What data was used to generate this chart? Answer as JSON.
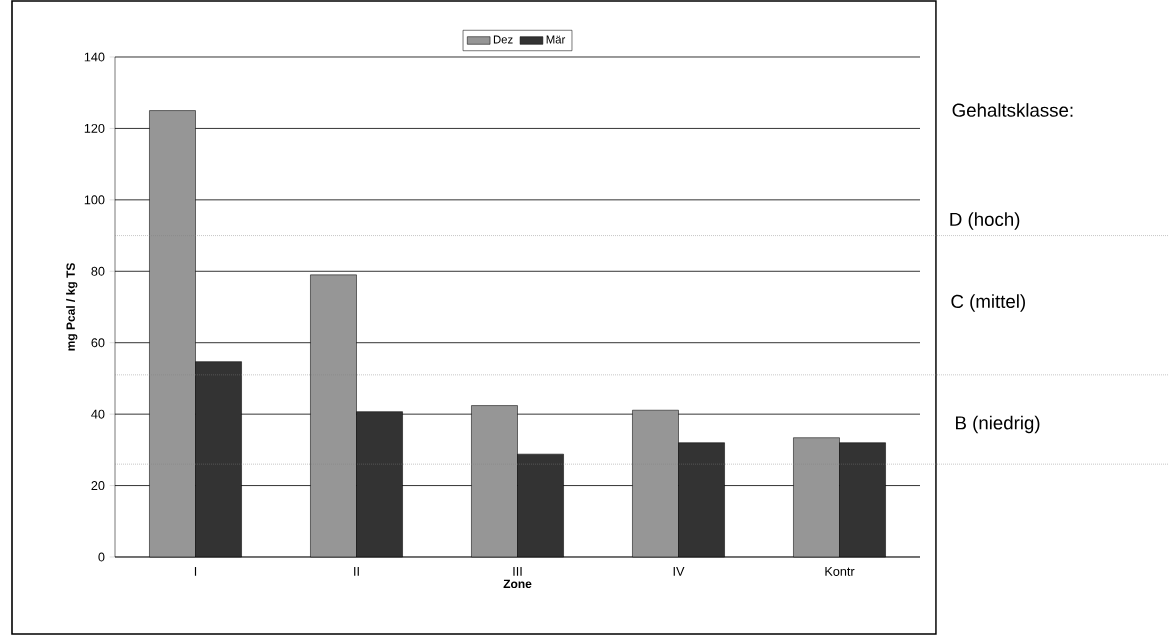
{
  "chart_data": {
    "type": "bar",
    "xlabel": "Zone",
    "ylabel": "mg Pcal / kg TS",
    "categories": [
      "I",
      "II",
      "III",
      "IV",
      "Kontr"
    ],
    "series": [
      {
        "name": "Dez",
        "color": "#969696",
        "values": [
          125,
          79,
          42.4,
          41.1,
          33.4
        ]
      },
      {
        "name": "Mär",
        "color": "#333333",
        "values": [
          54.7,
          40.7,
          28.8,
          32.0,
          32.0
        ]
      }
    ],
    "ylim": [
      0,
      140
    ],
    "yticks": [
      0,
      20,
      40,
      60,
      80,
      100,
      120,
      140
    ],
    "grid": "y",
    "legend": "top",
    "ref_lines": [
      {
        "axis": "y",
        "value": 90,
        "color": "#808080",
        "line_style": "dotted"
      },
      {
        "axis": "y",
        "value": 51,
        "color": "#808080",
        "line_style": "dotted"
      },
      {
        "axis": "y",
        "value": 26,
        "color": "#808080",
        "line_style": "dotted"
      }
    ],
    "annotations": [
      "Gehaltsklasse:",
      "D (hoch)",
      "C (mittel)",
      "B (niedrig)"
    ]
  }
}
